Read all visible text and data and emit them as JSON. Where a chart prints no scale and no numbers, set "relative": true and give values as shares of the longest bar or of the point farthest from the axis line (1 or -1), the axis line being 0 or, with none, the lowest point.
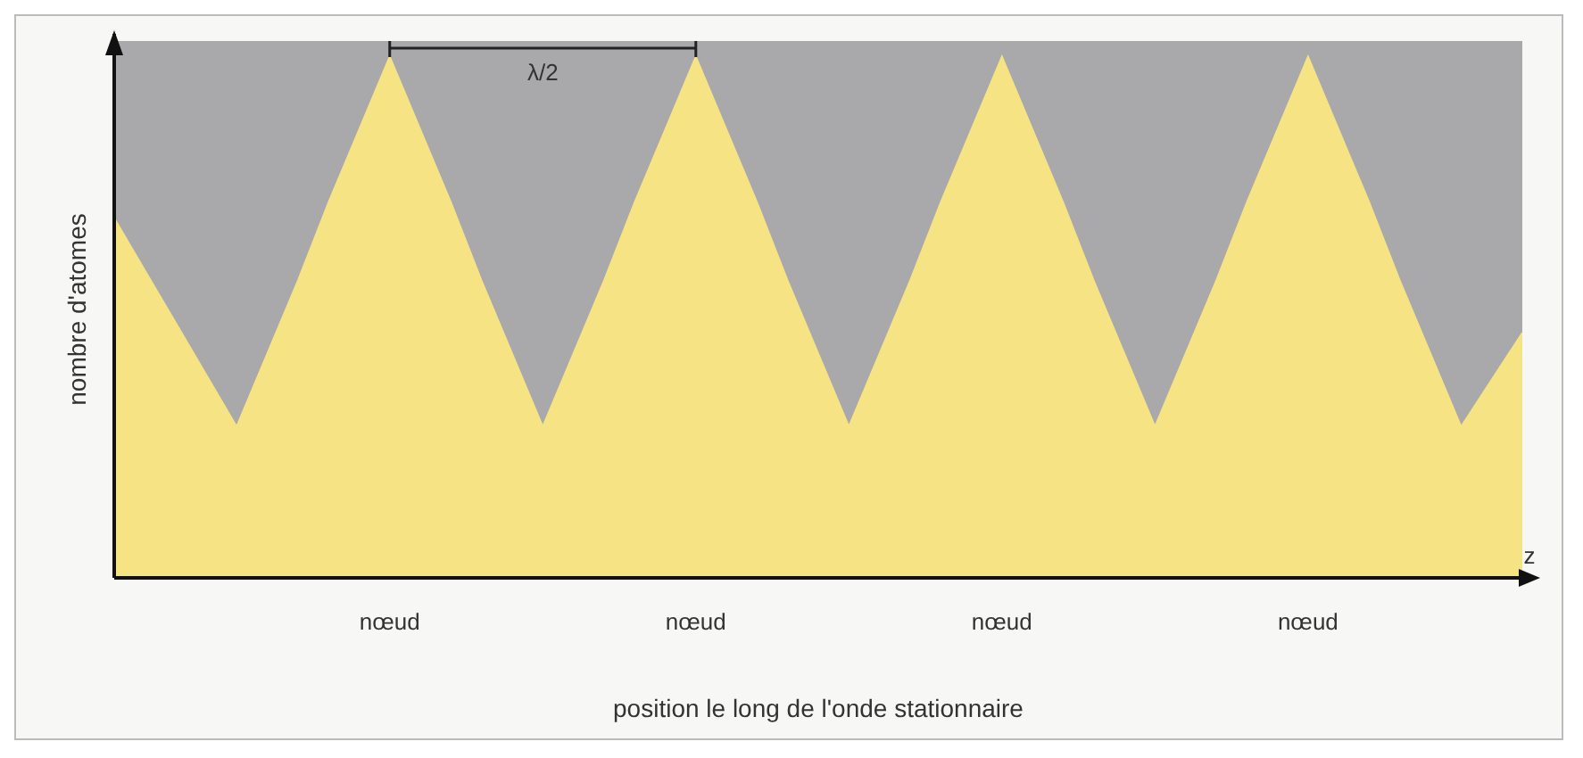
{
  "chart_data": {
    "type": "area",
    "relative": true,
    "color": "#f6e383",
    "xlabel": "position le long de l'onde stationnaire",
    "ylabel": "nombre d'atomes",
    "annotations": [
      "λ/2",
      "z"
    ],
    "categories": [
      null,
      null,
      null,
      null,
      null,
      null,
      null,
      null,
      null,
      "nœud",
      null,
      null,
      null,
      null,
      null,
      null,
      null,
      null,
      null,
      "nœud",
      null,
      null,
      null,
      null,
      null,
      null,
      null,
      null,
      null,
      "nœud",
      null,
      null,
      null,
      null,
      null,
      null,
      null,
      null,
      null,
      "nœud",
      null,
      null,
      null,
      null,
      null,
      null,
      null
    ],
    "values": [
      0.69,
      0.59,
      0.49,
      0.39,
      0.29,
      0.43,
      0.57,
      0.72,
      0.86,
      1.0,
      0.86,
      0.72,
      0.57,
      0.43,
      0.29,
      0.43,
      0.57,
      0.72,
      0.86,
      1.0,
      0.86,
      0.72,
      0.57,
      0.43,
      0.29,
      0.43,
      0.57,
      0.72,
      0.86,
      1.0,
      0.86,
      0.72,
      0.57,
      0.43,
      0.29,
      0.43,
      0.57,
      0.72,
      0.86,
      1.0,
      0.86,
      0.72,
      0.57,
      0.43,
      0.29,
      0.38,
      0.47
    ]
  }
}
